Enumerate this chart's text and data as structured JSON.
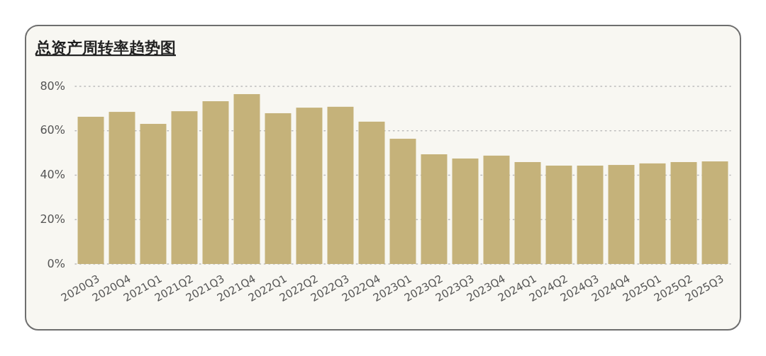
{
  "chart_data": {
    "type": "bar",
    "title": "总资产周转率趋势图",
    "categories": [
      "2020Q3",
      "2020Q4",
      "2021Q1",
      "2021Q2",
      "2021Q3",
      "2021Q4",
      "2022Q1",
      "2022Q2",
      "2022Q3",
      "2022Q4",
      "2023Q1",
      "2023Q2",
      "2023Q3",
      "2023Q4",
      "2024Q1",
      "2024Q2",
      "2024Q3",
      "2024Q4",
      "2025Q1",
      "2025Q2",
      "2025Q3"
    ],
    "values": [
      66.3,
      68.5,
      63.1,
      68.8,
      73.3,
      76.5,
      67.9,
      70.4,
      70.8,
      64.1,
      56.4,
      49.4,
      47.5,
      48.8,
      45.9,
      44.3,
      44.3,
      44.6,
      45.3,
      45.9,
      46.2
    ],
    "color": "#c5b27a",
    "ylim": [
      0,
      80
    ],
    "yticks": [
      {
        "value": 0,
        "label": "0%"
      },
      {
        "value": 20,
        "label": "20%"
      },
      {
        "value": 40,
        "label": "40%"
      },
      {
        "value": 60,
        "label": "60%"
      },
      {
        "value": 80,
        "label": "80%"
      }
    ],
    "grid": "y"
  }
}
